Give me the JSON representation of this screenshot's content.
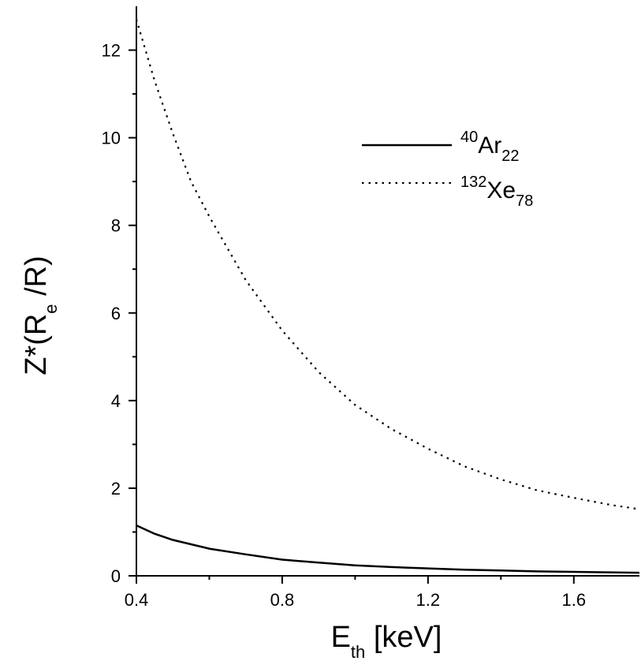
{
  "chart_data": {
    "type": "line",
    "xlabel": {
      "main": "E",
      "sub": "th",
      "rest": " [keV]"
    },
    "ylabel": {
      "main": "Z*(R",
      "sub": "e",
      "rest": " /R)"
    },
    "xlim": [
      0.4,
      1.78
    ],
    "ylim": [
      0,
      13
    ],
    "xticks": [
      0.4,
      0.8,
      1.2,
      1.6
    ],
    "xtick_labels": [
      "0.4",
      "0.8",
      "1.2",
      "1.6"
    ],
    "yticks": [
      0,
      2,
      4,
      6,
      8,
      10,
      12
    ],
    "ytick_labels": [
      "0",
      "2",
      "4",
      "6",
      "8",
      "10",
      "12"
    ],
    "grid": false,
    "legend_position": "top-right",
    "series": [
      {
        "name": {
          "sup": "40",
          "main": "Ar",
          "sub": "22"
        },
        "style": "solid",
        "x": [
          0.4,
          0.45,
          0.5,
          0.6,
          0.7,
          0.8,
          0.9,
          1.0,
          1.1,
          1.2,
          1.3,
          1.4,
          1.5,
          1.6,
          1.7,
          1.78
        ],
        "y": [
          1.15,
          0.96,
          0.82,
          0.62,
          0.49,
          0.37,
          0.3,
          0.24,
          0.2,
          0.17,
          0.14,
          0.12,
          0.1,
          0.09,
          0.08,
          0.07
        ]
      },
      {
        "name": {
          "sup": "132",
          "main": "Xe",
          "sub": "78"
        },
        "style": "dotted",
        "x": [
          0.4,
          0.45,
          0.5,
          0.55,
          0.6,
          0.7,
          0.8,
          0.9,
          1.0,
          1.1,
          1.2,
          1.3,
          1.4,
          1.5,
          1.6,
          1.7,
          1.78
        ],
        "y": [
          12.7,
          11.3,
          10.1,
          9.0,
          8.2,
          6.75,
          5.6,
          4.65,
          3.9,
          3.35,
          2.9,
          2.5,
          2.2,
          1.95,
          1.78,
          1.62,
          1.52
        ]
      }
    ]
  }
}
